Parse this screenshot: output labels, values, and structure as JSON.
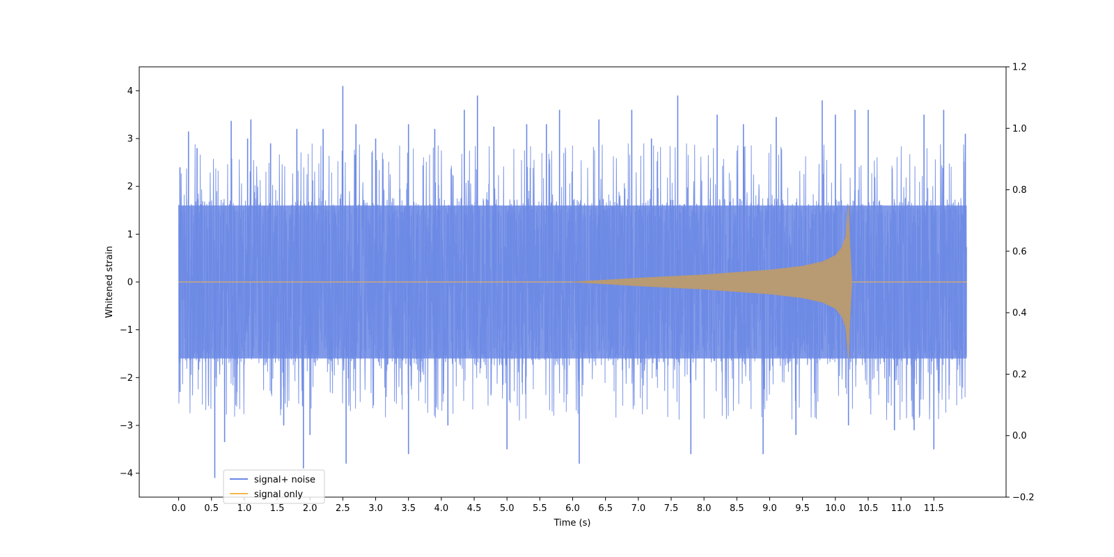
{
  "chart_data": {
    "type": "line",
    "xlabel": "Time (s)",
    "ylabel": "Whitened strain",
    "xlim": [
      -0.6,
      12.6
    ],
    "ylim": [
      -4.5,
      4.5
    ],
    "y2lim": [
      -0.2,
      1.2
    ],
    "xticks": [
      "0.0",
      "0.5",
      "1.0",
      "1.5",
      "2.0",
      "2.5",
      "3.0",
      "3.5",
      "4.0",
      "4.5",
      "5.0",
      "5.5",
      "6.0",
      "6.5",
      "7.0",
      "7.5",
      "8.0",
      "8.5",
      "9.0",
      "9.5",
      "10.0",
      "10.5",
      "11.0",
      "11.5"
    ],
    "yticks": [
      "4",
      "3",
      "2",
      "1",
      "0",
      "−1",
      "−2",
      "−3",
      "−4"
    ],
    "y2ticks": [
      "1.2",
      "1.0",
      "0.8",
      "0.6",
      "0.4",
      "0.2",
      "0.0",
      "−0.2"
    ],
    "legend_position": "lower-left",
    "series": [
      {
        "name": "signal+ noise",
        "color": "#6b88e4",
        "x_range": [
          0.0,
          12.0
        ],
        "typical_peak": [
          1.6,
          -1.6
        ],
        "spikes": [
          {
            "x": 0.02,
            "y": 2.4
          },
          {
            "x": 0.02,
            "y": -2.3
          },
          {
            "x": 0.15,
            "y": 3.15
          },
          {
            "x": 0.28,
            "y": 2.8
          },
          {
            "x": 0.55,
            "y": -4.1
          },
          {
            "x": 0.7,
            "y": -3.35
          },
          {
            "x": 0.8,
            "y": 3.37
          },
          {
            "x": 1.05,
            "y": 3.0
          },
          {
            "x": 1.1,
            "y": 3.4
          },
          {
            "x": 1.4,
            "y": 2.9
          },
          {
            "x": 1.6,
            "y": -3.0
          },
          {
            "x": 1.8,
            "y": 3.2
          },
          {
            "x": 1.9,
            "y": -3.9
          },
          {
            "x": 2.0,
            "y": -3.2
          },
          {
            "x": 2.2,
            "y": 3.2
          },
          {
            "x": 2.5,
            "y": 4.1
          },
          {
            "x": 2.55,
            "y": -3.8
          },
          {
            "x": 2.7,
            "y": 3.3
          },
          {
            "x": 3.0,
            "y": 3.0
          },
          {
            "x": 3.5,
            "y": 3.3
          },
          {
            "x": 3.5,
            "y": -3.6
          },
          {
            "x": 3.9,
            "y": 3.2
          },
          {
            "x": 4.1,
            "y": -3.0
          },
          {
            "x": 4.35,
            "y": 3.6
          },
          {
            "x": 4.55,
            "y": 3.9
          },
          {
            "x": 4.8,
            "y": 3.25
          },
          {
            "x": 5.0,
            "y": -3.5
          },
          {
            "x": 5.3,
            "y": 3.3
          },
          {
            "x": 5.6,
            "y": 3.3
          },
          {
            "x": 5.8,
            "y": 3.6
          },
          {
            "x": 6.1,
            "y": -3.8
          },
          {
            "x": 6.4,
            "y": 3.4
          },
          {
            "x": 6.9,
            "y": 3.6
          },
          {
            "x": 7.2,
            "y": 3.0
          },
          {
            "x": 7.6,
            "y": 3.9
          },
          {
            "x": 7.8,
            "y": -3.6
          },
          {
            "x": 8.2,
            "y": 3.5
          },
          {
            "x": 8.6,
            "y": 3.3
          },
          {
            "x": 8.9,
            "y": -3.6
          },
          {
            "x": 9.1,
            "y": 3.45
          },
          {
            "x": 9.4,
            "y": -3.2
          },
          {
            "x": 9.8,
            "y": 3.8
          },
          {
            "x": 10.0,
            "y": 3.5
          },
          {
            "x": 10.2,
            "y": -3.0
          },
          {
            "x": 10.3,
            "y": 3.6
          },
          {
            "x": 10.5,
            "y": 3.6
          },
          {
            "x": 10.9,
            "y": -3.1
          },
          {
            "x": 11.2,
            "y": -3.1
          },
          {
            "x": 11.35,
            "y": 3.5
          },
          {
            "x": 11.5,
            "y": -3.5
          },
          {
            "x": 11.65,
            "y": 3.6
          },
          {
            "x": 11.98,
            "y": 3.1
          }
        ]
      },
      {
        "name": "signal only",
        "color": "#f5b74a",
        "x_range": [
          0.0,
          12.0
        ],
        "onset": 6.0,
        "merger_time": 10.22,
        "envelope": [
          {
            "x": 6.0,
            "y": 0.0
          },
          {
            "x": 7.0,
            "y": 0.08
          },
          {
            "x": 8.0,
            "y": 0.15
          },
          {
            "x": 9.0,
            "y": 0.25
          },
          {
            "x": 9.5,
            "y": 0.33
          },
          {
            "x": 9.8,
            "y": 0.42
          },
          {
            "x": 10.0,
            "y": 0.55
          },
          {
            "x": 10.1,
            "y": 0.72
          },
          {
            "x": 10.16,
            "y": 0.95
          },
          {
            "x": 10.2,
            "y": 1.6
          },
          {
            "x": 10.22,
            "y": 0.8
          },
          {
            "x": 10.25,
            "y": 0.05
          }
        ]
      }
    ]
  }
}
